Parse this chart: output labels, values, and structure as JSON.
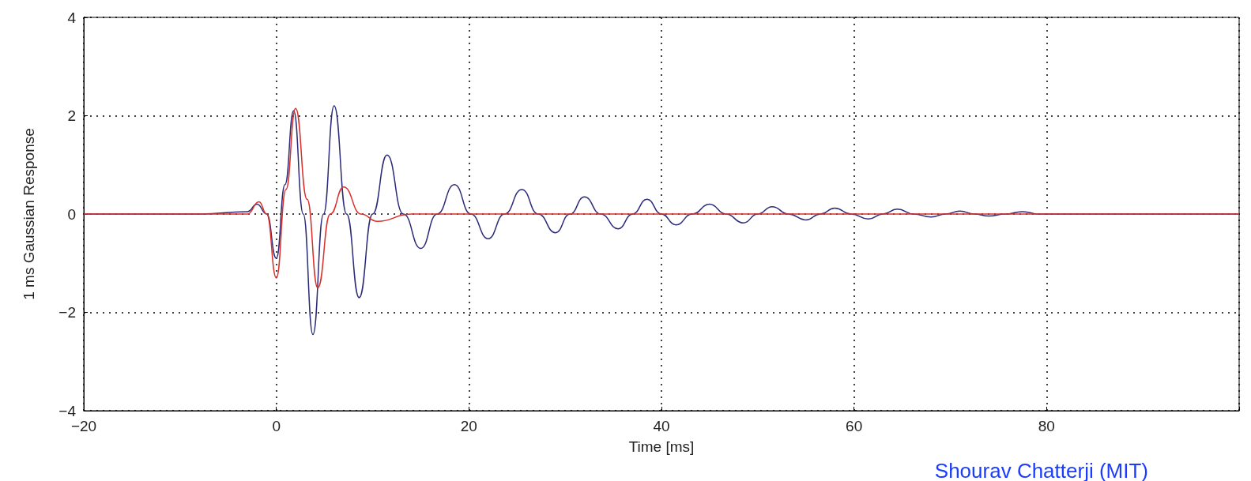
{
  "chart_data": {
    "type": "line",
    "xlabel": "Time [ms]",
    "ylabel": "1 ms Gaussian Response",
    "xlim": [
      -20,
      100
    ],
    "xticks": [
      {
        "value": -20,
        "label": "−20"
      },
      0,
      20,
      40,
      60,
      80,
      {
        "value": 100,
        "label": null
      }
    ],
    "ylim": [
      -4,
      4
    ],
    "yticks": [
      {
        "value": -4,
        "label": "−4"
      },
      {
        "value": -2,
        "label": "−2"
      },
      0,
      2,
      4
    ],
    "grid": true,
    "marker": "none",
    "line_style": "solid",
    "annotations": [
      "Shourav Chatterji (MIT)"
    ],
    "series": [
      {
        "color": "#2b2b78",
        "x": [
          -20,
          -8,
          -3,
          -2,
          -1,
          0,
          0.9,
          1.8,
          2.8,
          3.8,
          4.9,
          6,
          7.3,
          8.6,
          10,
          11.5,
          13.2,
          15,
          16.7,
          18.5,
          20.2,
          22,
          23.7,
          25.5,
          27.2,
          29,
          30.5,
          32,
          33.7,
          35.5,
          37,
          38.5,
          40,
          41.5,
          43.2,
          45,
          46.7,
          48.5,
          50,
          51.5,
          53.2,
          55,
          56.5,
          58,
          59.7,
          61.5,
          63,
          64.5,
          66.2,
          68,
          69.5,
          71,
          72.5,
          74,
          75.7,
          77.5,
          79.2,
          100
        ],
        "values": [
          0,
          0,
          0.05,
          0.2,
          0,
          -0.9,
          0.6,
          2.1,
          0,
          -2.45,
          0,
          2.2,
          0,
          -1.7,
          0,
          1.2,
          0,
          -0.7,
          0,
          0.6,
          0,
          -0.5,
          0,
          0.5,
          0,
          -0.38,
          0,
          0.35,
          0,
          -0.3,
          0,
          0.3,
          0,
          -0.22,
          0,
          0.2,
          0,
          -0.18,
          0,
          0.15,
          0,
          -0.12,
          0,
          0.12,
          0,
          -0.1,
          0,
          0.1,
          0,
          -0.06,
          0,
          0.06,
          0,
          -0.04,
          0,
          0.05,
          0,
          0
        ]
      },
      {
        "color": "#d9302c",
        "x": [
          -20,
          -3,
          -1.8,
          -1,
          0,
          1,
          2,
          3.2,
          4.3,
          5.6,
          7,
          8.8,
          10.5,
          14,
          100
        ],
        "values": [
          0,
          0,
          0.25,
          0,
          -1.3,
          0.5,
          2.15,
          0.3,
          -1.5,
          0,
          0.55,
          0,
          -0.15,
          0,
          0
        ]
      }
    ]
  }
}
